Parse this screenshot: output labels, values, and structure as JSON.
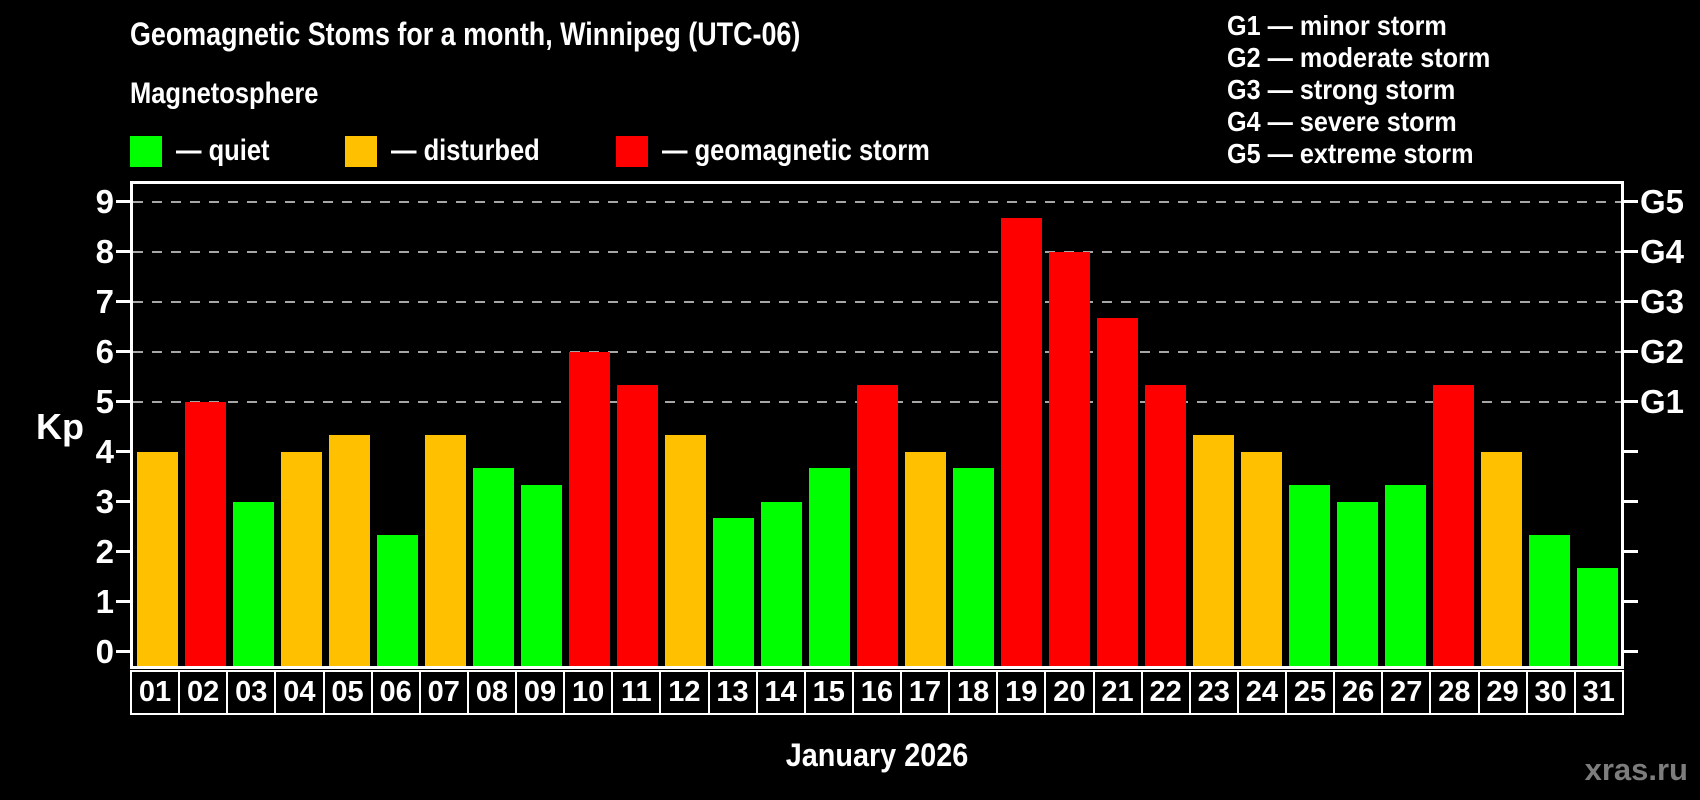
{
  "header": {
    "title": "Geomagnetic Stoms for a month, Winnipeg (UTC-06)",
    "subtitle": "Magnetosphere"
  },
  "legend": {
    "items": [
      {
        "name": "quiet",
        "label": "— quiet",
        "color": "#00ff00"
      },
      {
        "name": "disturbed",
        "label": "— disturbed",
        "color": "#ffc000"
      },
      {
        "name": "storm",
        "label": "— geomagnetic storm",
        "color": "#ff0000"
      }
    ]
  },
  "g_legend": {
    "items": [
      "G1 — minor storm",
      "G2 — moderate storm",
      "G3 — strong storm",
      "G4 — severe storm",
      "G5 — extreme storm"
    ]
  },
  "chart_data": {
    "type": "bar",
    "title": "Geomagnetic Stoms for a month, Winnipeg (UTC-06)",
    "xlabel": "January 2026",
    "ylabel": "Kp",
    "ylim": [
      0,
      9
    ],
    "grid": "horizontal dashed at Kp 5-9",
    "legend_position": "top-left",
    "y_ticks": [
      0,
      1,
      2,
      3,
      4,
      5,
      6,
      7,
      8,
      9
    ],
    "gridlines_kp": [
      5,
      6,
      7,
      8,
      9
    ],
    "right_axis_labels": [
      {
        "kp": 5,
        "label": "G1"
      },
      {
        "kp": 6,
        "label": "G2"
      },
      {
        "kp": 7,
        "label": "G3"
      },
      {
        "kp": 8,
        "label": "G4"
      },
      {
        "kp": 9,
        "label": "G5"
      }
    ],
    "colors": {
      "quiet": "#00ff00",
      "disturbed": "#ffc000",
      "storm": "#ff0000"
    },
    "days": [
      {
        "day": "01",
        "kp": 4.0,
        "condition": "disturbed"
      },
      {
        "day": "02",
        "kp": 5.0,
        "condition": "storm"
      },
      {
        "day": "03",
        "kp": 3.0,
        "condition": "quiet"
      },
      {
        "day": "04",
        "kp": 4.0,
        "condition": "disturbed"
      },
      {
        "day": "05",
        "kp": 4.33,
        "condition": "disturbed"
      },
      {
        "day": "06",
        "kp": 2.33,
        "condition": "quiet"
      },
      {
        "day": "07",
        "kp": 4.33,
        "condition": "disturbed"
      },
      {
        "day": "08",
        "kp": 3.67,
        "condition": "quiet"
      },
      {
        "day": "09",
        "kp": 3.33,
        "condition": "quiet"
      },
      {
        "day": "10",
        "kp": 6.0,
        "condition": "storm"
      },
      {
        "day": "11",
        "kp": 5.33,
        "condition": "storm"
      },
      {
        "day": "12",
        "kp": 4.33,
        "condition": "disturbed"
      },
      {
        "day": "13",
        "kp": 2.67,
        "condition": "quiet"
      },
      {
        "day": "14",
        "kp": 3.0,
        "condition": "quiet"
      },
      {
        "day": "15",
        "kp": 3.67,
        "condition": "quiet"
      },
      {
        "day": "16",
        "kp": 5.33,
        "condition": "storm"
      },
      {
        "day": "17",
        "kp": 4.0,
        "condition": "disturbed"
      },
      {
        "day": "18",
        "kp": 3.67,
        "condition": "quiet"
      },
      {
        "day": "19",
        "kp": 8.67,
        "condition": "storm"
      },
      {
        "day": "20",
        "kp": 8.0,
        "condition": "storm"
      },
      {
        "day": "21",
        "kp": 6.67,
        "condition": "storm"
      },
      {
        "day": "22",
        "kp": 5.33,
        "condition": "storm"
      },
      {
        "day": "23",
        "kp": 4.33,
        "condition": "disturbed"
      },
      {
        "day": "24",
        "kp": 4.0,
        "condition": "disturbed"
      },
      {
        "day": "25",
        "kp": 3.33,
        "condition": "quiet"
      },
      {
        "day": "26",
        "kp": 3.0,
        "condition": "quiet"
      },
      {
        "day": "27",
        "kp": 3.33,
        "condition": "quiet"
      },
      {
        "day": "28",
        "kp": 5.33,
        "condition": "storm"
      },
      {
        "day": "29",
        "kp": 4.0,
        "condition": "disturbed"
      },
      {
        "day": "30",
        "kp": 2.33,
        "condition": "quiet"
      },
      {
        "day": "31",
        "kp": 1.67,
        "condition": "quiet"
      }
    ]
  },
  "footer": {
    "watermark": "xras.ru"
  }
}
